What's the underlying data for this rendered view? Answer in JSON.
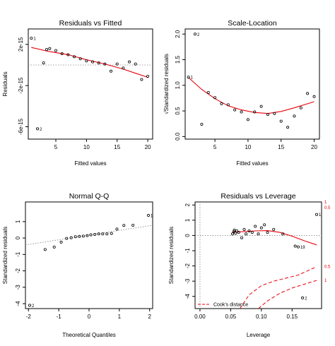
{
  "chart_data": [
    {
      "type": "scatter",
      "title": "Residuals vs Fitted",
      "xlabel": "Fitted values",
      "ylabel": "Residuals",
      "xlim": [
        0.5,
        20.8
      ],
      "ylim": [
        -7.2e-15,
        3.5e-15
      ],
      "xticks": [
        5,
        10,
        15,
        20
      ],
      "xticklabels": [
        "5",
        "10",
        "15",
        "20"
      ],
      "yticks": [
        2e-15,
        -2e-15,
        -6e-15
      ],
      "yticklabels": [
        "2e-15",
        "-2e-15",
        "-6e-15"
      ],
      "hline": {
        "y": 0,
        "style": "dotted",
        "color": "#888888"
      },
      "points": {
        "x": [
          1,
          2,
          3,
          3.5,
          4,
          5,
          6,
          7,
          8,
          9,
          10,
          11,
          12,
          13,
          14,
          15,
          16,
          17,
          18,
          19,
          20
        ],
        "y": [
          2.6e-15,
          -6.2e-15,
          2e-16,
          1.5e-15,
          1.6e-15,
          1.4e-15,
          1.1e-15,
          1e-15,
          8e-16,
          6e-16,
          4e-16,
          3e-16,
          2e-16,
          1e-16,
          -6e-16,
          1e-16,
          -3e-16,
          3e-16,
          1e-16,
          -1.4e-15,
          -1.1e-15
        ]
      },
      "smooth": {
        "x": [
          1,
          4,
          7,
          10,
          13,
          16,
          18,
          20
        ],
        "y": [
          1.7e-15,
          1.3e-15,
          1e-15,
          5e-16,
          1e-16,
          -4e-16,
          -8e-16,
          -1.2e-15
        ]
      },
      "point_labels": [
        {
          "text": "1",
          "x": 1,
          "y": 2.6e-15
        },
        {
          "text": "2",
          "x": 2,
          "y": -6.2e-15
        }
      ]
    },
    {
      "type": "scatter",
      "title": "Scale-Location",
      "xlabel": "Fitted values",
      "ylabel": "√Standardized residuals",
      "xlim": [
        0.5,
        20.8
      ],
      "ylim": [
        -0.05,
        2.1
      ],
      "xticks": [
        5,
        10,
        15,
        20
      ],
      "xticklabels": [
        "5",
        "10",
        "15",
        "20"
      ],
      "yticks": [
        0.0,
        0.5,
        1.0,
        1.5,
        2.0
      ],
      "yticklabels": [
        "0.0",
        "0.5",
        "1.0",
        "1.5",
        "2.0"
      ],
      "points": {
        "x": [
          1,
          2,
          3,
          4,
          5,
          6,
          7,
          8,
          9,
          10,
          11,
          12,
          13,
          14,
          15,
          16,
          17,
          18,
          19,
          20
        ],
        "y": [
          1.16,
          2.0,
          0.24,
          0.86,
          0.76,
          0.64,
          0.62,
          0.52,
          0.48,
          0.33,
          0.48,
          0.59,
          0.43,
          0.45,
          0.3,
          0.18,
          0.4,
          0.56,
          0.84,
          0.78
        ]
      },
      "smooth": {
        "x": [
          1,
          3,
          5,
          7,
          9,
          11,
          13,
          15,
          17,
          19,
          20
        ],
        "y": [
          1.15,
          0.92,
          0.74,
          0.6,
          0.52,
          0.47,
          0.45,
          0.49,
          0.56,
          0.64,
          0.68
        ]
      },
      "point_labels": [
        {
          "text": "1",
          "x": 1,
          "y": 1.16
        },
        {
          "text": "2",
          "x": 2,
          "y": 2.0
        }
      ]
    },
    {
      "type": "scatter",
      "title": "Normal Q-Q",
      "xlabel": "Theoretical Quantiles",
      "ylabel": "Standardized residuals",
      "xlim": [
        -2.1,
        2.1
      ],
      "ylim": [
        -4.3,
        2.2
      ],
      "xticks": [
        -2,
        -1,
        0,
        1,
        2
      ],
      "xticklabels": [
        "-2",
        "-1",
        "0",
        "1",
        "2"
      ],
      "yticks": [
        1,
        0,
        -1,
        -2,
        -3,
        -4
      ],
      "yticklabels": [
        "1",
        "0",
        "-1",
        "-2",
        "-3",
        "-4"
      ],
      "qq_line": {
        "x": [
          -2.1,
          2.1
        ],
        "y": [
          -0.42,
          0.78
        ]
      },
      "points": {
        "x": [
          -1.96,
          -1.45,
          -1.15,
          -0.92,
          -0.74,
          -0.59,
          -0.45,
          -0.32,
          -0.19,
          -0.06,
          0.06,
          0.19,
          0.32,
          0.45,
          0.59,
          0.74,
          0.92,
          1.15,
          1.45,
          1.96
        ],
        "y": [
          -4.1,
          -0.7,
          -0.55,
          -0.25,
          -0.02,
          0.02,
          0.08,
          0.1,
          0.12,
          0.15,
          0.2,
          0.22,
          0.25,
          0.25,
          0.25,
          0.28,
          0.55,
          0.77,
          0.78,
          1.38
        ]
      },
      "point_labels": [
        {
          "text": "1",
          "x": 1.96,
          "y": 1.38
        },
        {
          "text": "2",
          "x": -1.96,
          "y": -4.1
        }
      ]
    },
    {
      "type": "scatter",
      "title": "Residuals vs Leverage",
      "xlabel": "Leverage",
      "ylabel": "Standardized residuals",
      "xlim": [
        -0.008,
        0.198
      ],
      "ylim": [
        -4.8,
        2.2
      ],
      "xticks": [
        0.0,
        0.05,
        0.1,
        0.15
      ],
      "xticklabels": [
        "0.00",
        "0.05",
        "0.10",
        "0.15"
      ],
      "yticks": [
        2,
        1,
        0,
        -1,
        -2,
        -3,
        -4
      ],
      "yticklabels": [
        "2",
        "1",
        "0",
        "-1",
        "-2",
        "-3",
        "-4"
      ],
      "hline": {
        "y": 0,
        "style": "dotted",
        "color": "#888888"
      },
      "vline": {
        "x": 0,
        "style": "dotted",
        "color": "#888888"
      },
      "points": {
        "x": [
          0.19,
          0.167,
          0.055,
          0.053,
          0.056,
          0.058,
          0.06,
          0.063,
          0.068,
          0.072,
          0.075,
          0.08,
          0.085,
          0.09,
          0.095,
          0.1,
          0.105,
          0.11,
          0.12,
          0.135,
          0.155,
          0.16
        ],
        "y": [
          1.38,
          -4.1,
          0.25,
          0.1,
          0.35,
          0.15,
          0.3,
          0.2,
          -0.15,
          0.4,
          0.1,
          0.3,
          0.2,
          0.6,
          0.1,
          0.5,
          0.7,
          0.2,
          0.4,
          0.1,
          -0.7,
          -0.75
        ]
      },
      "smooth": {
        "x": [
          0.053,
          0.07,
          0.09,
          0.11,
          0.13,
          0.15,
          0.17,
          0.19
        ],
        "y": [
          0.22,
          0.25,
          0.3,
          0.32,
          0.2,
          -0.05,
          -0.35,
          -0.62
        ]
      },
      "cooks_contours": [
        {
          "level": 0.5,
          "x": [
            0.065,
            0.08,
            0.1,
            0.12,
            0.14,
            0.16,
            0.19
          ],
          "y": [
            -4.8,
            -3.9,
            -3.3,
            -3.0,
            -2.8,
            -2.6,
            -2.05
          ]
        },
        {
          "level": 1,
          "x": [
            0.095,
            0.11,
            0.13,
            0.15,
            0.17,
            0.19
          ],
          "y": [
            -4.8,
            -4.3,
            -3.8,
            -3.45,
            -3.2,
            -2.95
          ]
        }
      ],
      "right_axis_labels": [
        "0.5",
        "1",
        "0.5",
        "1"
      ],
      "right_axis_values": [
        1.82,
        2.85,
        -2.05,
        -2.95
      ],
      "legend": {
        "text": "Cook's distance",
        "placement": "bottom-left",
        "style": "dashed",
        "color": "#e8000b"
      },
      "point_labels": [
        {
          "text": "1",
          "x": 0.19,
          "y": 1.38
        },
        {
          "text": "19",
          "x": 0.16,
          "y": -0.75
        },
        {
          "text": "2",
          "x": 0.167,
          "y": -4.1
        }
      ]
    }
  ],
  "colors": {
    "smooth": "#e8000b",
    "points": "#000000",
    "axis": "#000000",
    "reference": "#888888"
  }
}
